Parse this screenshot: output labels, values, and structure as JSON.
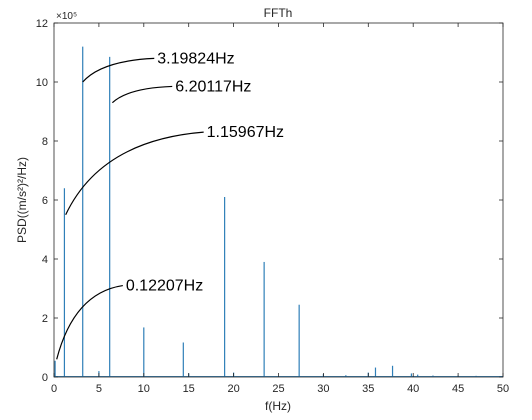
{
  "chart_data": {
    "type": "line",
    "title": "FFTh",
    "xlabel": "f(Hz)",
    "ylabel": "PSD((m/s²)²/Hz)",
    "y_scale_label": "×10⁵",
    "xlim": [
      0,
      50
    ],
    "ylim": [
      0,
      12
    ],
    "xticks": [
      0,
      5,
      10,
      15,
      20,
      25,
      30,
      35,
      40,
      45,
      50
    ],
    "yticks": [
      0,
      2,
      4,
      6,
      8,
      10,
      12
    ],
    "y_unit_multiplier": 100000,
    "grid": false,
    "series": [
      {
        "color": "#2f7fb8",
        "peaks": [
          {
            "x": 0.12207,
            "y": 0.55
          },
          {
            "x": 1.15967,
            "y": 6.4
          },
          {
            "x": 3.19824,
            "y": 11.2
          },
          {
            "x": 5.0,
            "y": 0.2
          },
          {
            "x": 6.20117,
            "y": 10.85
          },
          {
            "x": 10.0,
            "y": 1.68
          },
          {
            "x": 14.4,
            "y": 1.17
          },
          {
            "x": 15.0,
            "y": 0.12
          },
          {
            "x": 19.0,
            "y": 6.1
          },
          {
            "x": 20.0,
            "y": 0.15
          },
          {
            "x": 23.4,
            "y": 3.9
          },
          {
            "x": 27.3,
            "y": 2.45
          },
          {
            "x": 30.0,
            "y": 0.1
          },
          {
            "x": 32.5,
            "y": 0.06
          },
          {
            "x": 35.0,
            "y": 0.15
          },
          {
            "x": 35.8,
            "y": 0.32
          },
          {
            "x": 37.7,
            "y": 0.38
          },
          {
            "x": 39.8,
            "y": 0.12
          },
          {
            "x": 40.5,
            "y": 0.08
          },
          {
            "x": 42.2,
            "y": 0.05
          },
          {
            "x": 45.0,
            "y": 0.05
          },
          {
            "x": 47.0,
            "y": 0.04
          }
        ]
      }
    ],
    "annotations": [
      {
        "text": "3.19824Hz",
        "target": [
          3.19824,
          10.0
        ],
        "label_at": [
          11.5,
          10.8
        ]
      },
      {
        "text": "6.20117Hz",
        "target": [
          6.5,
          9.3
        ],
        "label_at": [
          13.5,
          9.85
        ]
      },
      {
        "text": "1.15967Hz",
        "target": [
          1.3,
          5.5
        ],
        "label_at": [
          17.0,
          8.3
        ]
      },
      {
        "text": "0.12207Hz",
        "target": [
          0.3,
          0.6
        ],
        "label_at": [
          8.0,
          3.1
        ]
      }
    ]
  }
}
